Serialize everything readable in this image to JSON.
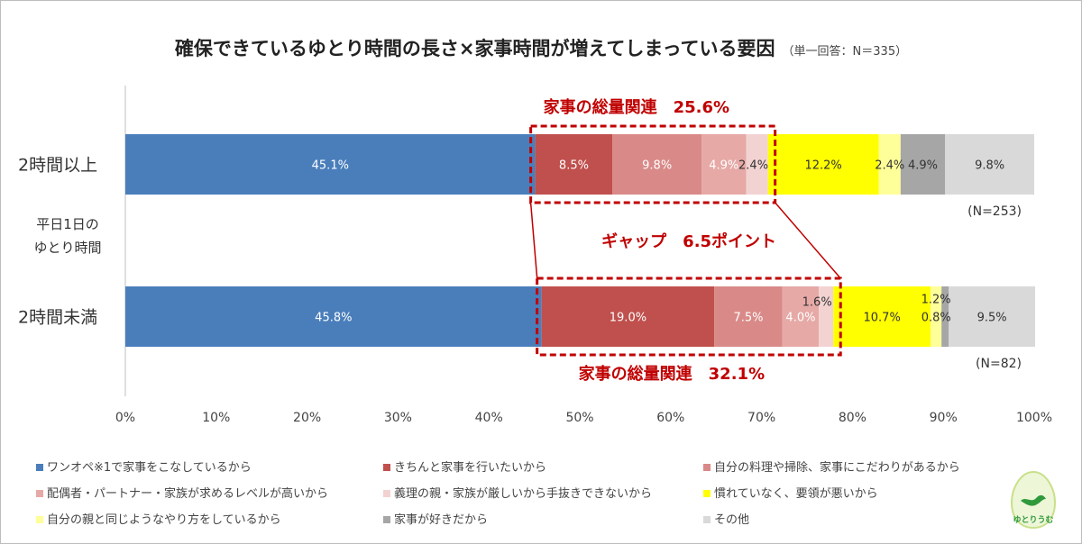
{
  "chart_data": {
    "type": "bar",
    "title": "確保できているゆとり時間の長さ×家事時間が増えてしまっている要因",
    "subtitle": "（単一回答：N＝335）",
    "axis_title_lines": [
      "平日1日の",
      "ゆとり時間"
    ],
    "categories": [
      "2時間以上",
      "2時間未満"
    ],
    "n_labels": [
      "(N=253)",
      "(N=82)"
    ],
    "xlim": [
      0,
      100
    ],
    "x_ticks": [
      "0%",
      "10%",
      "20%",
      "30%",
      "40%",
      "50%",
      "60%",
      "70%",
      "80%",
      "90%",
      "100%"
    ],
    "series": [
      {
        "name": "ワンオペ※1で家事をこなしているから",
        "color": "#4a7ebb",
        "values": [
          45.1,
          45.8
        ],
        "labels": [
          "45.1%",
          "45.8%"
        ],
        "text": "#ffffff"
      },
      {
        "name": "きちんと家事を行いたいから",
        "color": "#c0504d",
        "values": [
          8.5,
          19.0
        ],
        "labels": [
          "8.5%",
          "19.0%"
        ],
        "text": "#ffffff"
      },
      {
        "name": "自分の料理や掃除、家事にこだわりがあるから",
        "color": "#d98a88",
        "values": [
          9.8,
          7.5
        ],
        "labels": [
          "9.8%",
          "7.5%"
        ],
        "text": "#ffffff"
      },
      {
        "name": "配偶者・パートナー・家族が求めるレベルが高いから",
        "color": "#e6a9a6",
        "values": [
          4.9,
          4.0
        ],
        "labels": [
          "4.9%",
          "4.0%"
        ],
        "text": "#ffffff"
      },
      {
        "name": "義理の親・家族が厳しいから手抜きできないから",
        "color": "#f2d3d2",
        "values": [
          2.4,
          1.6
        ],
        "labels": [
          "2.4%",
          "1.6%"
        ],
        "text": "#333333"
      },
      {
        "name": "慣れていなく、要領が悪いから",
        "color": "#ffff00",
        "values": [
          12.2,
          10.7
        ],
        "labels": [
          "12.2%",
          "10.7%"
        ],
        "text": "#333333"
      },
      {
        "name": "自分の親と同じようなやり方をしているから",
        "color": "#ffff99",
        "values": [
          2.4,
          1.2
        ],
        "labels": [
          "2.4%",
          "1.2%"
        ],
        "text": "#333333"
      },
      {
        "name": "家事が好きだから",
        "color": "#a6a6a6",
        "values": [
          4.9,
          0.8
        ],
        "labels": [
          "4.9%",
          "0.8%"
        ],
        "text": "#333333"
      },
      {
        "name": "その他",
        "color": "#d9d9d9",
        "values": [
          9.8,
          9.5
        ],
        "labels": [
          "9.8%",
          "9.5%"
        ],
        "text": "#333333"
      }
    ],
    "annotations": {
      "group_top": "家事の総量関連　25.6%",
      "group_bottom": "家事の総量関連　32.1%",
      "gap": "ギャップ　6.5ポイント",
      "accent": "#c00000"
    },
    "grid": false,
    "legend_position": "bottom"
  },
  "logo_text": "ゆとりうむ"
}
